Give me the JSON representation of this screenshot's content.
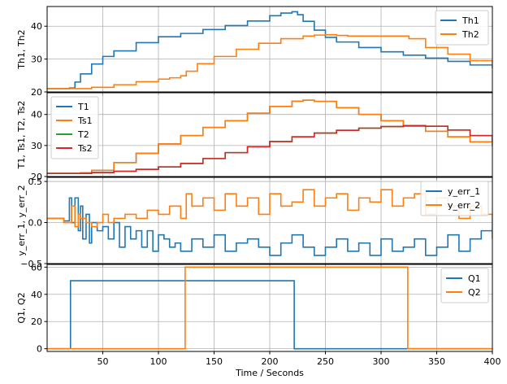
{
  "colors": {
    "blue": "#1f77b4",
    "orange": "#ff7f0e",
    "green": "#2ca02c",
    "red": "#d62728",
    "grid": "#b0b0b0",
    "axis": "#000000"
  },
  "chart_data": [
    {
      "type": "line",
      "ylabel": "Th1, Th2",
      "xlim": [
        0,
        400
      ],
      "ylim": [
        20,
        46
      ],
      "yticks": [
        20,
        30,
        40
      ],
      "grid": true,
      "legend_position": "top-right",
      "series": [
        {
          "name": "Th1",
          "color": "blue",
          "x": [
            0,
            18,
            20,
            25,
            30,
            40,
            50,
            60,
            80,
            100,
            120,
            140,
            160,
            180,
            200,
            210,
            220,
            225,
            230,
            240,
            250,
            260,
            280,
            300,
            320,
            340,
            360,
            380,
            400
          ],
          "y": [
            21,
            21,
            21.2,
            23,
            25.5,
            28.5,
            30.8,
            32.5,
            35,
            36.8,
            37.8,
            39,
            40.2,
            41.6,
            43.2,
            44,
            44.4,
            43.5,
            41.5,
            38.8,
            36.6,
            35.2,
            33.5,
            32.2,
            31.2,
            30.3,
            29.3,
            28.2,
            27.2
          ]
        },
        {
          "name": "Th2",
          "color": "orange",
          "x": [
            0,
            20,
            40,
            60,
            80,
            100,
            110,
            120,
            125,
            135,
            150,
            170,
            190,
            210,
            230,
            240,
            250,
            260,
            270,
            300,
            322,
            325,
            340,
            360,
            380,
            400
          ],
          "y": [
            21,
            21,
            21.4,
            22.2,
            23.1,
            23.9,
            24.3,
            24.9,
            26.3,
            28.6,
            30.8,
            33,
            34.8,
            36.2,
            37,
            37.3,
            37.4,
            37.2,
            37,
            37,
            37,
            36.2,
            33.5,
            31.5,
            29.5,
            28
          ]
        }
      ]
    },
    {
      "type": "line",
      "ylabel": "T1, Ts1, T2, Ts2",
      "xlim": [
        0,
        400
      ],
      "ylim": [
        20,
        47
      ],
      "yticks": [
        20,
        30,
        40
      ],
      "grid": true,
      "legend_position": "top-left",
      "series": [
        {
          "name": "T1",
          "color": "blue",
          "x": [
            0,
            20,
            30,
            40,
            60,
            80,
            100,
            120,
            140,
            160,
            180,
            200,
            220,
            230,
            240,
            260,
            280,
            300,
            320,
            340,
            360,
            380,
            400
          ],
          "y": [
            21,
            21,
            21.2,
            22,
            24.5,
            27.5,
            30.5,
            33.2,
            35.8,
            38,
            40.4,
            42.6,
            44.3,
            44.6,
            44.2,
            42.2,
            40,
            38,
            36.2,
            34.6,
            32.8,
            31.2,
            29.8
          ]
        },
        {
          "name": "Ts1",
          "color": "orange",
          "x": [
            0,
            20,
            30,
            40,
            60,
            80,
            100,
            120,
            140,
            160,
            180,
            200,
            220,
            230,
            240,
            260,
            280,
            300,
            320,
            340,
            360,
            380,
            400
          ],
          "y": [
            21,
            21,
            21.2,
            22,
            24.5,
            27.5,
            30.5,
            33.2,
            35.8,
            38,
            40.4,
            42.6,
            44.3,
            44.6,
            44.2,
            42.2,
            40,
            38,
            36.2,
            34.6,
            32.8,
            31.2,
            29.8
          ]
        },
        {
          "name": "T2",
          "color": "green",
          "x": [
            0,
            20,
            40,
            60,
            80,
            100,
            120,
            140,
            160,
            180,
            200,
            220,
            240,
            260,
            280,
            300,
            320,
            330,
            340,
            360,
            380,
            400
          ],
          "y": [
            21,
            21,
            21.3,
            21.7,
            22.3,
            23.1,
            24.2,
            25.8,
            27.7,
            29.6,
            31.3,
            32.8,
            34,
            34.9,
            35.6,
            36.1,
            36.4,
            36.4,
            36.2,
            35,
            33.2,
            31.2
          ]
        },
        {
          "name": "Ts2",
          "color": "red",
          "x": [
            0,
            20,
            40,
            60,
            80,
            100,
            120,
            140,
            160,
            180,
            200,
            220,
            240,
            260,
            280,
            300,
            320,
            330,
            340,
            360,
            380,
            400
          ],
          "y": [
            21,
            21,
            21.3,
            21.7,
            22.3,
            23.1,
            24.2,
            25.8,
            27.7,
            29.6,
            31.3,
            32.8,
            34,
            34.9,
            35.6,
            36.1,
            36.4,
            36.4,
            36.2,
            35,
            33.2,
            31.2
          ]
        }
      ]
    },
    {
      "type": "line",
      "ylabel": "y_err_1, y_err_2",
      "xlim": [
        0,
        400
      ],
      "ylim": [
        -0.5,
        0.55
      ],
      "yticks": [
        -0.5,
        0.0,
        0.5
      ],
      "yticklabels": [
        "−0.5",
        "0.0",
        "0.5"
      ],
      "grid": true,
      "legend_position": "top-right",
      "series": [
        {
          "name": "y_err_1",
          "color": "blue",
          "x": [
            0,
            10,
            15,
            20,
            22,
            25,
            28,
            30,
            32,
            35,
            38,
            40,
            45,
            50,
            55,
            60,
            65,
            70,
            75,
            80,
            85,
            90,
            95,
            100,
            105,
            110,
            115,
            120,
            130,
            140,
            150,
            160,
            170,
            180,
            190,
            200,
            210,
            220,
            230,
            240,
            250,
            260,
            270,
            280,
            290,
            300,
            310,
            320,
            330,
            340,
            350,
            360,
            370,
            380,
            390,
            400
          ],
          "y": [
            0.05,
            0.05,
            0.02,
            0.3,
            0.0,
            0.3,
            -0.1,
            0.2,
            -0.2,
            0.1,
            -0.25,
            0.0,
            -0.1,
            -0.05,
            -0.2,
            0.0,
            -0.3,
            -0.05,
            -0.2,
            -0.1,
            -0.3,
            -0.1,
            -0.35,
            -0.15,
            -0.2,
            -0.3,
            -0.25,
            -0.35,
            -0.2,
            -0.3,
            -0.15,
            -0.35,
            -0.25,
            -0.2,
            -0.3,
            -0.4,
            -0.25,
            -0.15,
            -0.3,
            -0.4,
            -0.3,
            -0.2,
            -0.35,
            -0.25,
            -0.4,
            -0.2,
            -0.35,
            -0.3,
            -0.2,
            -0.4,
            -0.3,
            -0.15,
            -0.35,
            -0.2,
            -0.1,
            -0.2
          ]
        },
        {
          "name": "y_err_2",
          "color": "orange",
          "x": [
            0,
            10,
            15,
            20,
            22,
            25,
            28,
            30,
            35,
            40,
            45,
            50,
            55,
            60,
            70,
            80,
            90,
            100,
            110,
            120,
            125,
            130,
            140,
            150,
            160,
            170,
            180,
            190,
            200,
            210,
            220,
            230,
            240,
            250,
            260,
            270,
            280,
            290,
            300,
            310,
            320,
            330,
            340,
            350,
            360,
            370,
            380,
            390,
            400
          ],
          "y": [
            0.05,
            0.05,
            0.0,
            0.0,
            0.2,
            -0.05,
            0.1,
            0.05,
            0.0,
            -0.05,
            0.0,
            0.1,
            0.0,
            0.05,
            0.1,
            0.05,
            0.15,
            0.1,
            0.2,
            0.05,
            0.35,
            0.2,
            0.3,
            0.15,
            0.35,
            0.2,
            0.3,
            0.1,
            0.35,
            0.2,
            0.25,
            0.4,
            0.2,
            0.3,
            0.35,
            0.15,
            0.3,
            0.25,
            0.4,
            0.2,
            0.3,
            0.35,
            0.1,
            0.3,
            0.2,
            0.05,
            0.2,
            0.1,
            -0.1
          ]
        }
      ]
    },
    {
      "type": "line",
      "ylabel": "Q1, Q2",
      "xlabel": "Time / Seconds",
      "xlim": [
        0,
        400
      ],
      "ylim": [
        -2,
        62
      ],
      "yticks": [
        0,
        20,
        40,
        60
      ],
      "xticks": [
        50,
        100,
        150,
        200,
        250,
        300,
        350,
        400
      ],
      "grid": true,
      "legend_position": "top-right",
      "series": [
        {
          "name": "Q1",
          "color": "blue",
          "x": [
            0,
            21,
            21,
            222,
            222,
            400
          ],
          "y": [
            0,
            0,
            50,
            50,
            0,
            0
          ]
        },
        {
          "name": "Q2",
          "color": "orange",
          "x": [
            0,
            124,
            124,
            324,
            324,
            400
          ],
          "y": [
            0,
            0,
            60,
            60,
            0,
            0
          ]
        }
      ]
    }
  ]
}
